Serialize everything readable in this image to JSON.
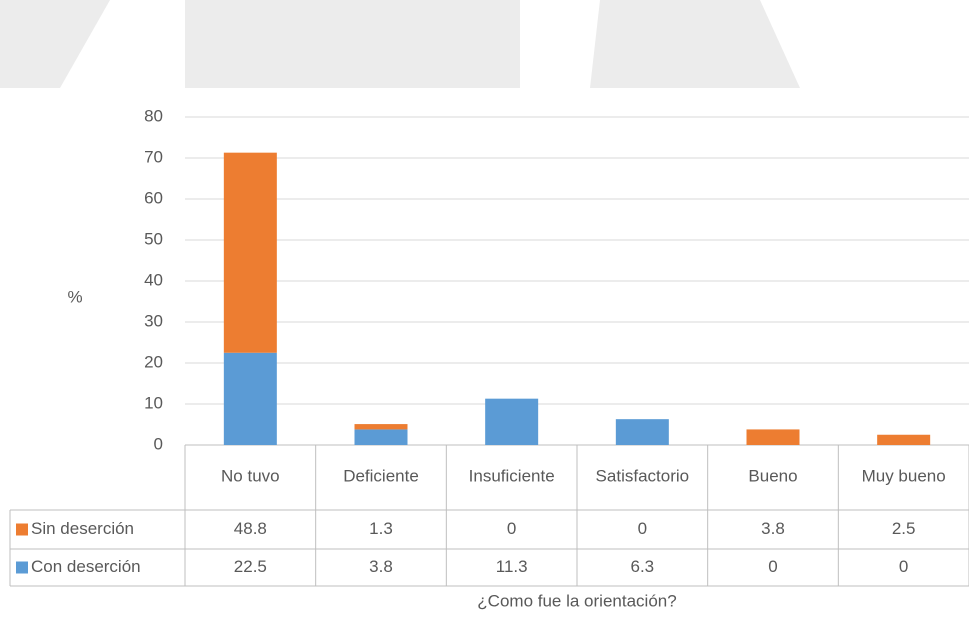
{
  "chart_data": {
    "type": "bar",
    "stacked": true,
    "y_label": "%",
    "x_label": "¿Como fue la orientación?",
    "categories": [
      "No tuvo",
      "Deficiente",
      "Insuficiente",
      "Satisfactorio",
      "Bueno",
      "Muy bueno"
    ],
    "series": [
      {
        "name": "Sin deserción",
        "color": "#ed7d31",
        "values": [
          48.8,
          1.3,
          0,
          0,
          3.8,
          2.5
        ]
      },
      {
        "name": "Con deserción",
        "color": "#5b9bd5",
        "values": [
          22.5,
          3.8,
          11.3,
          6.3,
          0,
          0
        ]
      }
    ],
    "ylim": [
      0,
      80
    ],
    "yticks": [
      0,
      10,
      20,
      30,
      40,
      50,
      60,
      70,
      80
    ],
    "grid": true,
    "data_table": true
  }
}
